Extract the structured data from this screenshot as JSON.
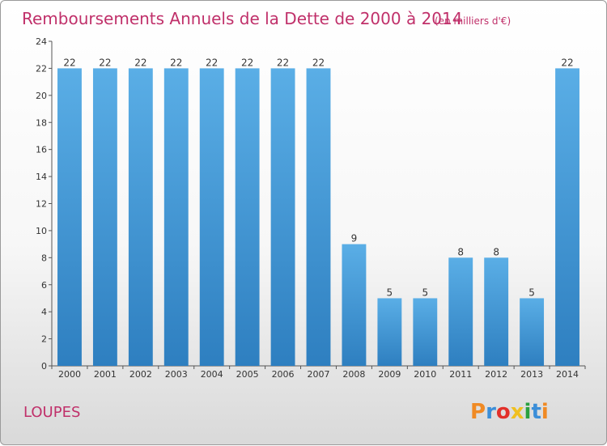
{
  "chart_data": {
    "type": "bar",
    "title": "Remboursements Annuels de la Dette de 2000 à 2014",
    "subtitle": "(en milliers d'€)",
    "categories": [
      "2000",
      "2001",
      "2002",
      "2003",
      "2004",
      "2005",
      "2006",
      "2007",
      "2008",
      "2009",
      "2010",
      "2011",
      "2012",
      "2013",
      "2014"
    ],
    "values": [
      22,
      22,
      22,
      22,
      22,
      22,
      22,
      22,
      9,
      5,
      5,
      8,
      8,
      5,
      22
    ],
    "ylim": [
      0,
      24
    ],
    "yticks": [
      0,
      2,
      4,
      6,
      8,
      10,
      12,
      14,
      16,
      18,
      20,
      22,
      24
    ],
    "grid": false,
    "bar_color": "#5aaee6",
    "bar_color_dark": "#2e7fc0"
  },
  "footer": {
    "place": "LOUPES"
  },
  "logo": {
    "letters": [
      "P",
      "r",
      "o",
      "x",
      "i",
      "t",
      "i"
    ],
    "colors": [
      "#f08a24",
      "#3b8ed8",
      "#e2302a",
      "#f0c020",
      "#2aa040",
      "#3b8ed8",
      "#f08a24"
    ]
  }
}
